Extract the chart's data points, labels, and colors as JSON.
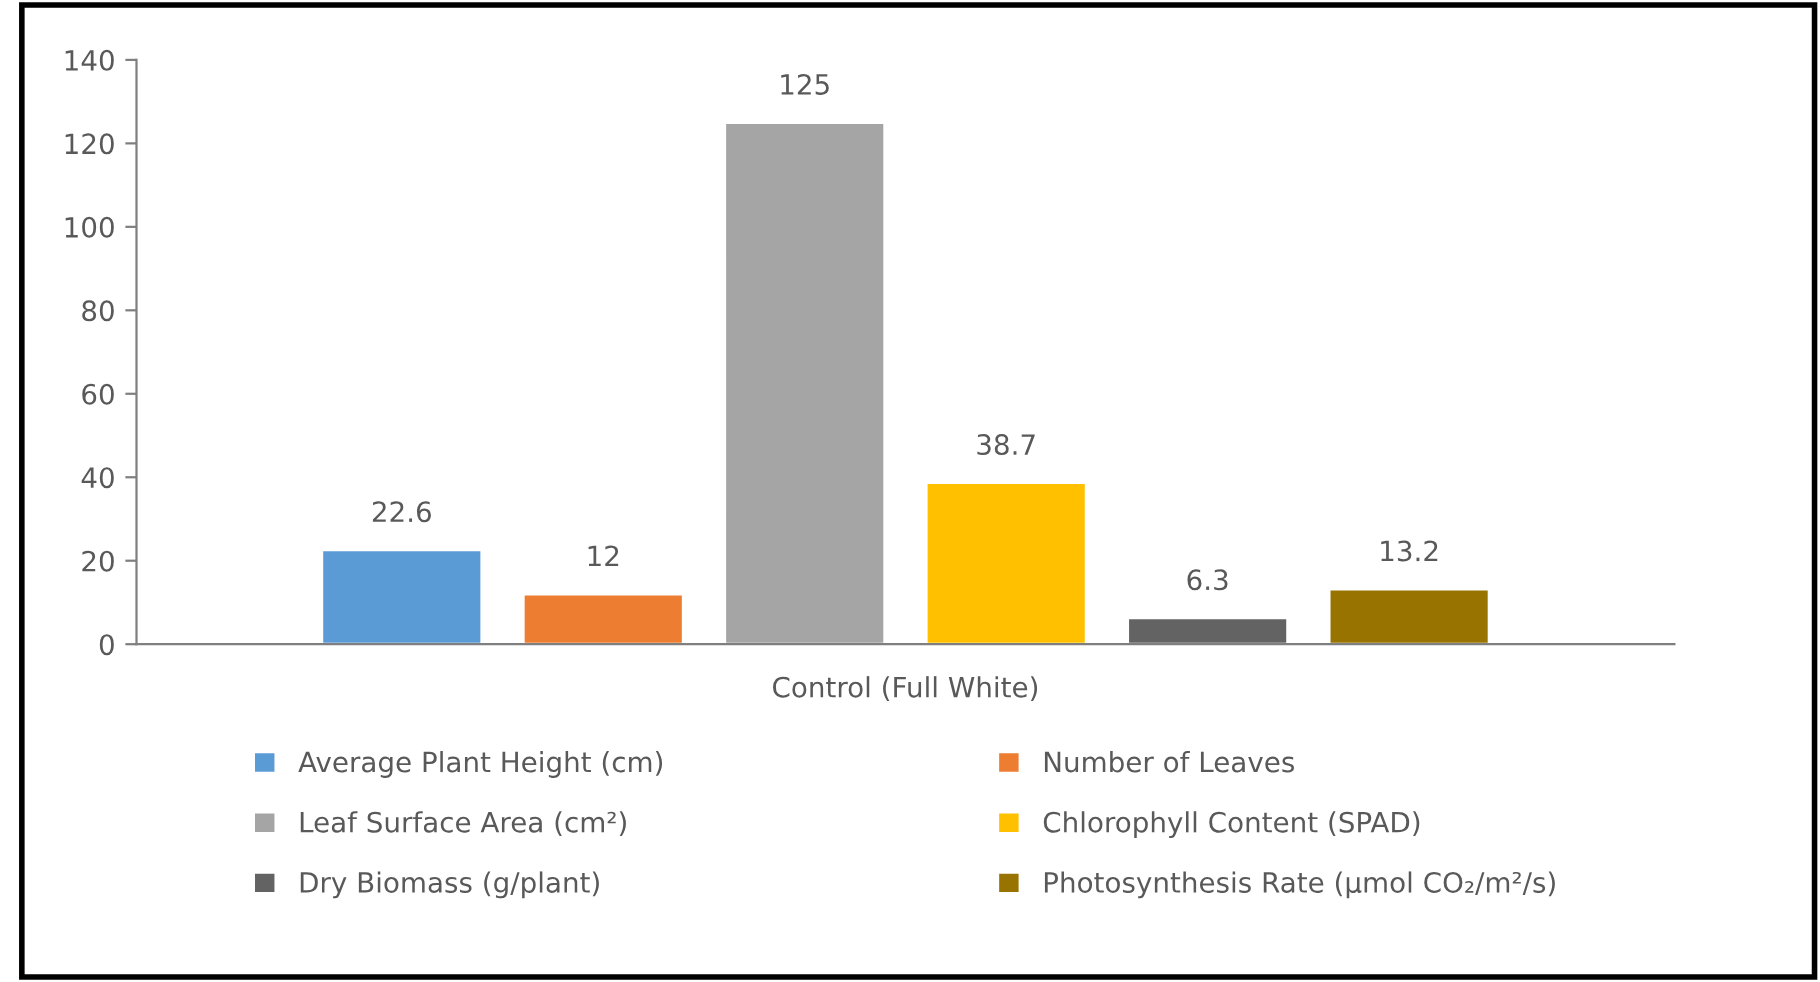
{
  "chart_data": {
    "type": "bar",
    "categories": [
      "Control (Full White)"
    ],
    "series": [
      {
        "name": "Average Plant Height (cm)",
        "color": "#5b9bd5",
        "values": [
          22.6
        ]
      },
      {
        "name": "Number of Leaves",
        "color": "#ed7d31",
        "values": [
          12
        ]
      },
      {
        "name": "Leaf Surface Area (cm²)",
        "color": "#a5a5a5",
        "values": [
          125
        ]
      },
      {
        "name": "Chlorophyll Content (SPAD)",
        "color": "#ffc000",
        "values": [
          38.7
        ]
      },
      {
        "name": "Dry Biomass (g/plant)",
        "color": "#636363",
        "values": [
          6.3
        ]
      },
      {
        "name": "Photosynthesis Rate (µmol CO₂/m²/s)",
        "color": "#997300",
        "values": [
          13.2
        ]
      }
    ],
    "ylim": [
      0,
      140
    ],
    "yticks": [
      0,
      20,
      40,
      60,
      80,
      100,
      120,
      140
    ],
    "data_labels": true,
    "grid": false,
    "legend": "bottom"
  }
}
